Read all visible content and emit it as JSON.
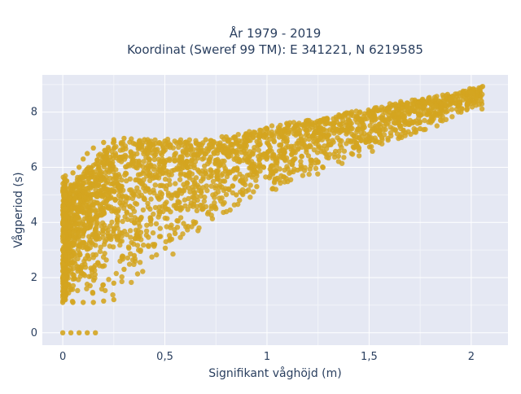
{
  "chart_data": {
    "type": "scatter",
    "title_line1": "År 1979 - 2019",
    "title_line2": "Koordinat (Sweref 99 TM): E 341221, N 6219585",
    "xlabel": "Signifikant våghöjd (m)",
    "ylabel": "Vågperiod (s)",
    "xlim": [
      -0.1,
      2.18
    ],
    "ylim": [
      -0.45,
      9.35
    ],
    "x_ticks": [
      0,
      0.5,
      1,
      1.5,
      2
    ],
    "x_tick_labels": [
      "0",
      "0,5",
      "1",
      "1,5",
      "2"
    ],
    "y_ticks": [
      0,
      2,
      4,
      6,
      8
    ],
    "y_tick_labels": [
      "0",
      "2",
      "4",
      "6",
      "8"
    ],
    "grid": true,
    "marker_color": "#D4A520",
    "plot_background": "#E5E8F3",
    "series": [
      {
        "points": [
          [
            0.0,
            0.0
          ],
          [
            0.04,
            0.0
          ],
          [
            0.08,
            0.0
          ],
          [
            0.12,
            0.0
          ],
          [
            0.16,
            0.0
          ],
          [
            0.0,
            1.1
          ],
          [
            0.05,
            1.1
          ],
          [
            0.1,
            1.1
          ],
          [
            0.15,
            1.1
          ],
          [
            0.2,
            1.15
          ],
          [
            0.25,
            1.2
          ],
          [
            0.0,
            1.5
          ],
          [
            0.0,
            2.0
          ],
          [
            0.0,
            2.5
          ],
          [
            0.0,
            3.0
          ],
          [
            0.0,
            3.5
          ],
          [
            0.0,
            4.0
          ],
          [
            0.01,
            4.5
          ],
          [
            0.01,
            5.0
          ],
          [
            0.02,
            5.5
          ],
          [
            0.05,
            5.8
          ],
          [
            0.08,
            6.0
          ],
          [
            0.1,
            6.3
          ],
          [
            0.12,
            6.5
          ],
          [
            0.15,
            6.7
          ],
          [
            0.2,
            6.9
          ],
          [
            0.25,
            7.0
          ],
          [
            0.3,
            7.05
          ],
          [
            0.4,
            7.0
          ],
          [
            0.5,
            6.95
          ],
          [
            0.6,
            6.9
          ],
          [
            0.7,
            7.0
          ],
          [
            0.8,
            7.1
          ],
          [
            0.9,
            7.2
          ],
          [
            1.0,
            7.4
          ],
          [
            1.1,
            7.45
          ],
          [
            1.2,
            7.5
          ],
          [
            1.3,
            7.6
          ],
          [
            1.4,
            7.7
          ],
          [
            1.5,
            7.9
          ],
          [
            1.6,
            8.0
          ],
          [
            1.7,
            8.1
          ],
          [
            1.8,
            8.3
          ],
          [
            1.9,
            8.5
          ],
          [
            2.0,
            8.7
          ],
          [
            2.05,
            8.9
          ],
          [
            0.25,
            1.8
          ],
          [
            0.3,
            2.3
          ],
          [
            0.35,
            2.8
          ],
          [
            0.45,
            3.2
          ],
          [
            0.55,
            3.6
          ],
          [
            0.65,
            4.0
          ],
          [
            0.75,
            4.5
          ],
          [
            0.85,
            5.0
          ],
          [
            0.95,
            5.3
          ],
          [
            1.05,
            5.6
          ],
          [
            1.15,
            5.9
          ],
          [
            1.25,
            6.2
          ],
          [
            1.35,
            6.4
          ],
          [
            1.45,
            6.7
          ],
          [
            1.55,
            6.9
          ],
          [
            1.65,
            7.1
          ],
          [
            1.75,
            7.4
          ],
          [
            1.85,
            7.7
          ],
          [
            1.95,
            8.0
          ],
          [
            2.05,
            8.4
          ]
        ]
      }
    ]
  }
}
